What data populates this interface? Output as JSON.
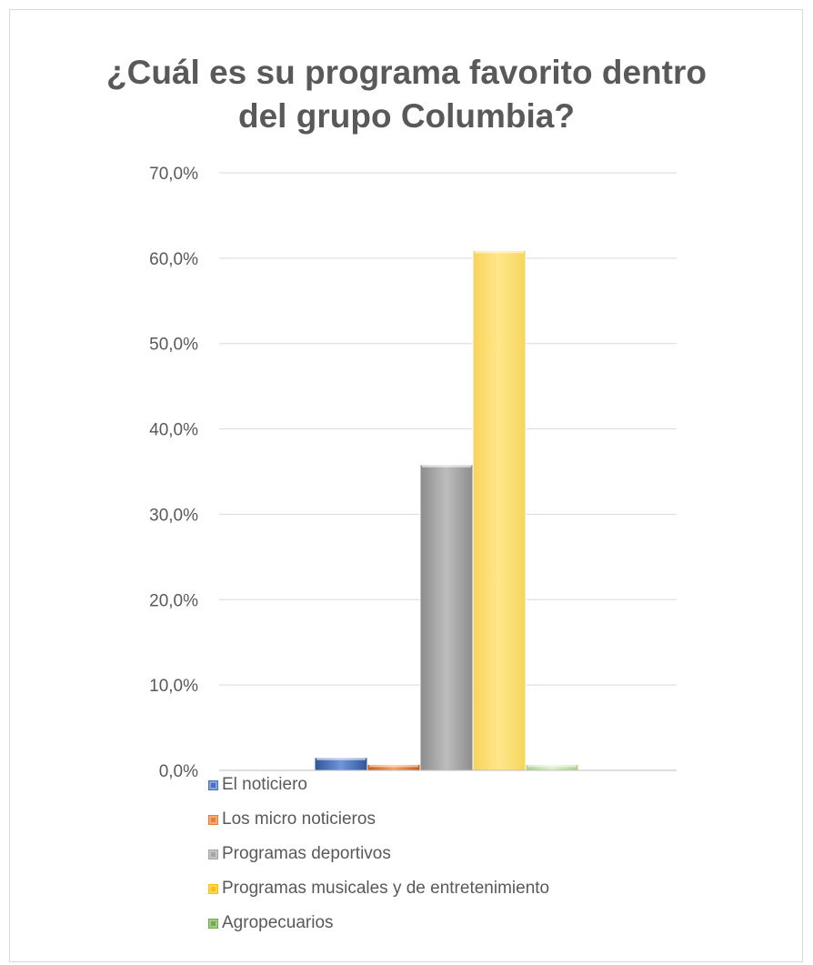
{
  "chart_data": {
    "type": "bar",
    "title": "¿Cuál es su programa favorito dentro del grupo Columbia?",
    "title_lines": [
      "¿Cuál es su programa favorito dentro",
      "del grupo Columbia?"
    ],
    "ylim": [
      0,
      70
    ],
    "yticks": [
      0,
      10,
      20,
      30,
      40,
      50,
      60,
      70
    ],
    "ytick_labels": [
      "0,0%",
      "10,0%",
      "20,0%",
      "30,0%",
      "40,0%",
      "50,0%",
      "60,0%",
      "70,0%"
    ],
    "grid": true,
    "legend_position": "bottom-left",
    "series": [
      {
        "name": "El noticiero",
        "values": [
          1.5
        ],
        "color": "#4472c4"
      },
      {
        "name": "Los micro noticieros",
        "values": [
          0.7
        ],
        "color": "#ed7d31"
      },
      {
        "name": "Programas deportivos",
        "values": [
          35.8
        ],
        "color": "#a5a5a5"
      },
      {
        "name": "Programas musicales y de entretenimiento",
        "values": [
          60.9
        ],
        "color": "#ffc000"
      },
      {
        "name": "Agropecuarios",
        "values": [
          0.7
        ],
        "color": "#70ad47"
      }
    ]
  }
}
